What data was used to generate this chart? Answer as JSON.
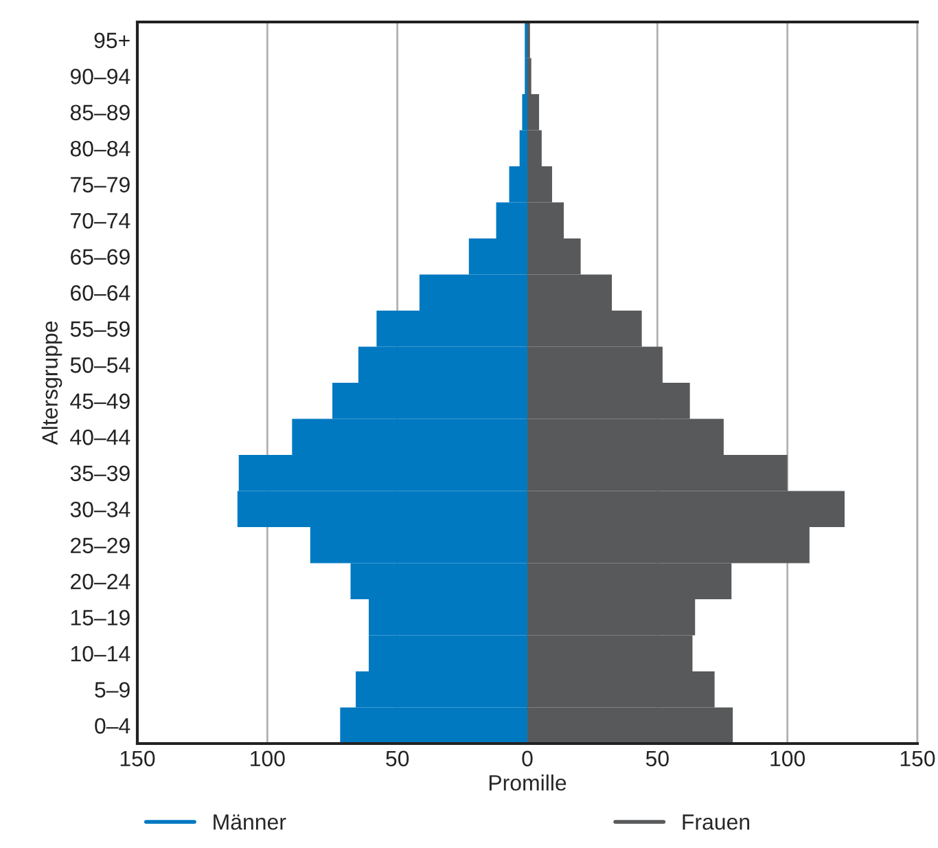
{
  "chart_data": {
    "type": "bar",
    "orientation": "horizontal",
    "xlabel": "Promille",
    "ylabel": "Altersgruppe",
    "categories": [
      "95+",
      "90–94",
      "85–89",
      "80–84",
      "75–79",
      "70–74",
      "65–69",
      "60–64",
      "55–59",
      "50–54",
      "45–49",
      "40–44",
      "35–39",
      "30–34",
      "25–29",
      "20–24",
      "15–19",
      "10–14",
      "5–9",
      "0–4"
    ],
    "series": [
      {
        "name": "Männer",
        "color": "#0079c1",
        "values": [
          -1,
          -1,
          -2,
          -3,
          -7,
          -12,
          -22.5,
          -41.5,
          -58,
          -65,
          -75,
          -90.5,
          -111,
          -111.5,
          -83.5,
          -68,
          -61,
          -61,
          -66,
          -72
        ]
      },
      {
        "name": "Frauen",
        "color": "#58595b",
        "values": [
          1,
          1.5,
          4.5,
          5.5,
          9.5,
          14,
          20.5,
          32.5,
          44,
          52,
          62.5,
          75.5,
          100,
          122,
          108.5,
          78.5,
          64.5,
          63.5,
          72,
          79
        ]
      }
    ],
    "xlim": [
      -150,
      150
    ],
    "xticks": [
      {
        "value": -150,
        "label": "150"
      },
      {
        "value": -100,
        "label": "100"
      },
      {
        "value": -50,
        "label": "50"
      },
      0,
      50,
      100,
      150
    ],
    "grid": "x",
    "legend": "bottom",
    "stacked": true
  }
}
